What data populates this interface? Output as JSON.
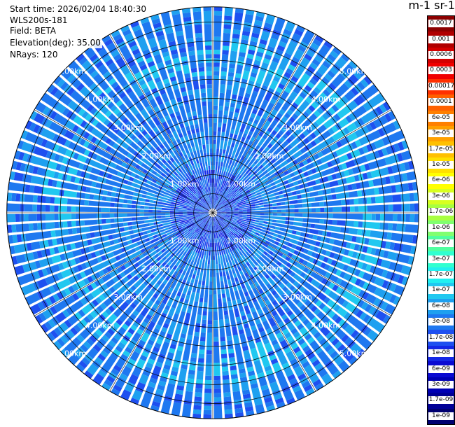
{
  "header": {
    "start_time": "Start time: 2026/02/04 18:40:30",
    "instrument": "WLS200s-181",
    "field": "Field: BETA",
    "elevation": "Elevation(deg): 35.00",
    "nrays": "NRays: 120"
  },
  "colorbar": {
    "unit_label": "m-1 sr-1",
    "labels": [
      "0.0017",
      "0.001",
      "0.0006",
      "0.0003",
      "0.00017",
      "0.0001",
      "6e-05",
      "3e-05",
      "1.7e-05",
      "1e-05",
      "6e-06",
      "3e-06",
      "1.7e-06",
      "1e-06",
      "6e-07",
      "3e-07",
      "1.7e-07",
      "1e-07",
      "6e-08",
      "3e-08",
      "1.7e-08",
      "1e-08",
      "6e-09",
      "3e-09",
      "1.7e-09",
      "1e-09"
    ],
    "colors": [
      "#8b0000",
      "#b00000",
      "#d40000",
      "#f00000",
      "#ff3000",
      "#ff6000",
      "#ff8000",
      "#ffa000",
      "#ffc000",
      "#ffe000",
      "#ffff00",
      "#d8ff20",
      "#a8ff40",
      "#80ff70",
      "#50ffa0",
      "#30ffd0",
      "#20f0f0",
      "#20c8f0",
      "#1ea0f0",
      "#1e78f0",
      "#1e50f0",
      "#1428e6",
      "#0a0ad2",
      "#0000b4",
      "#000096",
      "#000070"
    ]
  },
  "chart_data": {
    "type": "heatmap",
    "projection": "polar-ppi",
    "field": "BETA",
    "n_rays": 120,
    "elevation_deg": 35.0,
    "range_rings_km": [
      1,
      2,
      3,
      4,
      5
    ],
    "ring_labels": [
      "1.00km",
      "2.00km",
      "3.00km",
      "4.00km",
      "5.00km"
    ],
    "max_range_km": 5.4,
    "scale": "log",
    "dominant_values": [
      "3e-08",
      "1.7e-08",
      "6e-08",
      "1e-07"
    ],
    "grid": true
  }
}
